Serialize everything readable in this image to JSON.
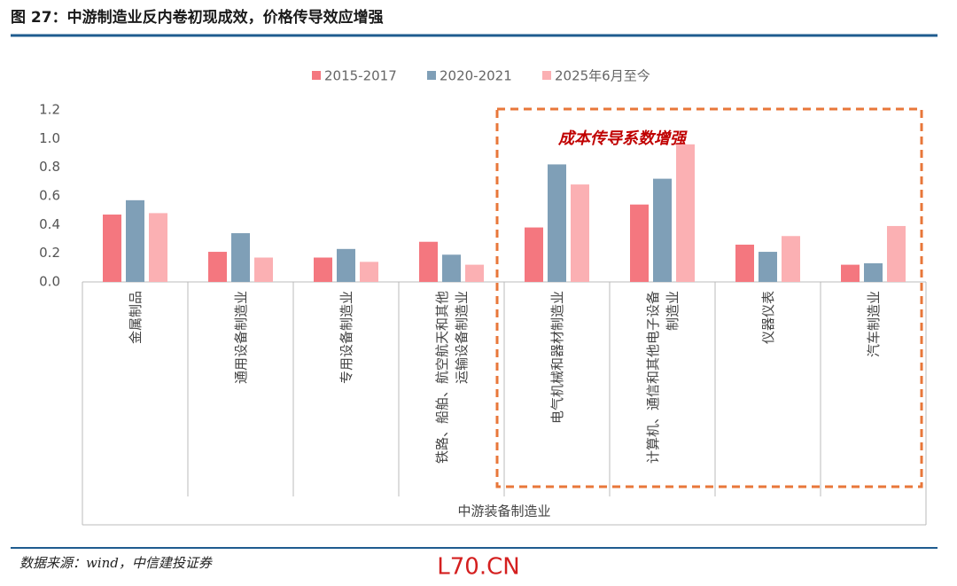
{
  "header": {
    "title": "图 27：中游制造业反内卷初现成效，价格传导效应增强"
  },
  "chart_data": {
    "type": "bar",
    "categories": [
      "金属制品",
      "通用设备制造业",
      "专用设备制造业",
      "铁路、船舶、航空航天和其他运输设备制造业",
      "电气机械和器材制造业",
      "计算机、通信和其他电子设备制造业",
      "仪器仪表",
      "汽车制造业"
    ],
    "group_label": "中游装备制造业",
    "series": [
      {
        "name": "2015-2017",
        "color": "#f4777f",
        "values": [
          0.47,
          0.21,
          0.17,
          0.28,
          0.38,
          0.54,
          0.26,
          0.12
        ]
      },
      {
        "name": "2020-2021",
        "color": "#7f9fb7",
        "values": [
          0.57,
          0.34,
          0.23,
          0.19,
          0.82,
          0.72,
          0.21,
          0.13
        ]
      },
      {
        "name": "2025年6月至今",
        "color": "#fbb0b3",
        "values": [
          0.48,
          0.17,
          0.14,
          0.12,
          0.68,
          0.96,
          0.32,
          0.39
        ]
      }
    ],
    "ylim": [
      0,
      1.2
    ],
    "yticks": [
      {
        "value": 0,
        "label": "0.0"
      },
      0.2,
      0.4,
      0.6,
      0.8,
      {
        "value": 1,
        "label": "1.0"
      },
      1.2
    ],
    "annotation": "成本传导系数增强"
  },
  "footer": {
    "source": "数据来源：wind，中信建投证券",
    "watermark": "L70.CN"
  }
}
